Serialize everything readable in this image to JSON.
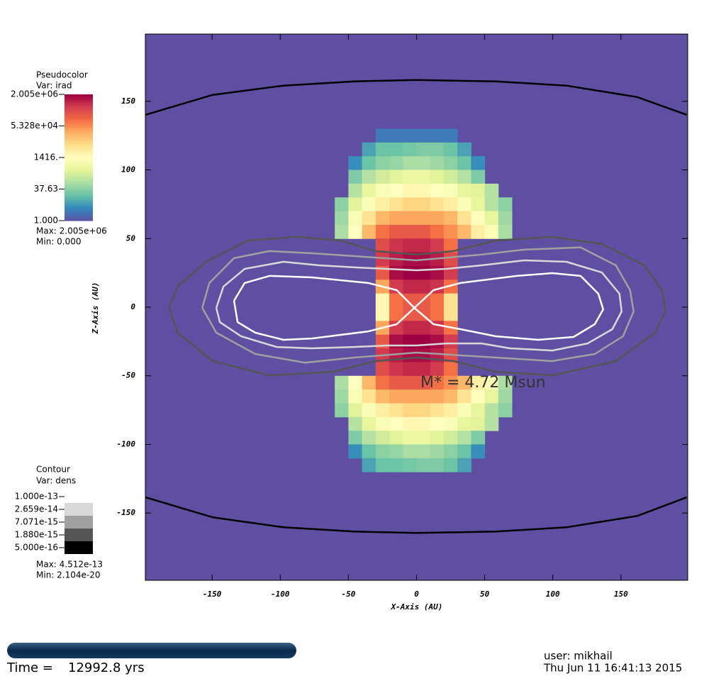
{
  "chart_data": {
    "type": "heatmap",
    "xlabel": "X-Axis (AU)",
    "ylabel": "Z-Axis (AU)",
    "xlim": [
      -199,
      199
    ],
    "ylim": [
      -199,
      199
    ],
    "xticks": [
      -150,
      -100,
      -50,
      0,
      50,
      100,
      150
    ],
    "yticks": [
      -150,
      -100,
      -50,
      0,
      50,
      100,
      150
    ],
    "annotation": "M* = 4.72 Msun",
    "x_edges": [
      -60,
      -50,
      -40,
      -30,
      -20,
      -10,
      0,
      10,
      20,
      30,
      40,
      50,
      60,
      70
    ],
    "y_edges": [
      130,
      120,
      110,
      100,
      90,
      80,
      70,
      60,
      50,
      40,
      30,
      20,
      10,
      0,
      -10,
      -20,
      -30,
      -40,
      -50,
      -60,
      -70,
      -80,
      -90,
      -100,
      -110,
      -120
    ],
    "z": [
      [
        null,
        null,
        null,
        3,
        3,
        3,
        3,
        3,
        3,
        null,
        null,
        null,
        null
      ],
      [
        null,
        null,
        8,
        20,
        20,
        25,
        30,
        30,
        20,
        8,
        null,
        null,
        null
      ],
      [
        null,
        5,
        20,
        40,
        50,
        80,
        80,
        60,
        40,
        20,
        5,
        null,
        null
      ],
      [
        null,
        30,
        100,
        200,
        300,
        500,
        500,
        300,
        200,
        100,
        30,
        null,
        null
      ],
      [
        null,
        100,
        400,
        1000,
        1416,
        2000,
        2000,
        1416,
        1000,
        400,
        300,
        100,
        null
      ],
      [
        40,
        300,
        1000,
        3000,
        5000,
        8000,
        8000,
        5000,
        3000,
        1000,
        400,
        100,
        40
      ],
      [
        60,
        1000,
        5000,
        20000,
        30000,
        30000,
        30000,
        30000,
        20000,
        5000,
        1500,
        400,
        60
      ],
      [
        80,
        1416,
        20000,
        100000,
        200000,
        200000,
        200000,
        100000,
        50000,
        20000,
        3000,
        1000,
        80
      ],
      [
        null,
        null,
        null,
        300000,
        600000,
        800000,
        800000,
        500000,
        100000,
        null,
        null,
        null,
        null
      ],
      [
        null,
        null,
        null,
        500000,
        1000000,
        1500000,
        1500000,
        1000000,
        300000,
        null,
        null,
        null,
        null
      ],
      [
        null,
        null,
        null,
        200000,
        1500000,
        2000000,
        2000000,
        1500000,
        500000,
        null,
        null,
        null,
        null
      ],
      [
        null,
        null,
        null,
        30000,
        500000,
        800000,
        800000,
        600000,
        100000,
        null,
        null,
        null,
        null
      ],
      [
        null,
        null,
        null,
        2000,
        100000,
        200000,
        200000,
        100000,
        5000,
        null,
        null,
        null,
        null
      ],
      [
        null,
        null,
        null,
        2000,
        100000,
        200000,
        200000,
        100000,
        5000,
        null,
        null,
        null,
        null
      ],
      [
        null,
        null,
        null,
        30000,
        500000,
        800000,
        800000,
        600000,
        100000,
        null,
        null,
        null,
        null
      ],
      [
        null,
        null,
        null,
        200000,
        1500000,
        2000000,
        2000000,
        1500000,
        500000,
        null,
        null,
        null,
        null
      ],
      [
        null,
        null,
        null,
        500000,
        1000000,
        1500000,
        1500000,
        1000000,
        300000,
        null,
        null,
        null,
        null
      ],
      [
        null,
        null,
        null,
        300000,
        600000,
        800000,
        800000,
        500000,
        100000,
        null,
        null,
        null,
        null
      ],
      [
        80,
        1416,
        20000,
        100000,
        200000,
        200000,
        200000,
        100000,
        50000,
        20000,
        3000,
        1000,
        80
      ],
      [
        60,
        1000,
        5000,
        20000,
        30000,
        30000,
        30000,
        30000,
        20000,
        5000,
        1500,
        400,
        60
      ],
      [
        40,
        300,
        1000,
        3000,
        5000,
        8000,
        8000,
        5000,
        3000,
        1000,
        400,
        100,
        40
      ],
      [
        null,
        100,
        400,
        1000,
        1416,
        2000,
        2000,
        1416,
        1000,
        400,
        300,
        100,
        null
      ],
      [
        null,
        30,
        100,
        200,
        300,
        500,
        500,
        300,
        200,
        100,
        30,
        null,
        null
      ],
      [
        null,
        5,
        20,
        40,
        50,
        80,
        80,
        60,
        40,
        20,
        5,
        null,
        null
      ],
      [
        null,
        null,
        8,
        20,
        20,
        25,
        30,
        30,
        20,
        8,
        null,
        null,
        null
      ]
    ],
    "colorbar": {
      "title": "Pseudocolor",
      "var": "Var: irad",
      "scale": "log",
      "lim": [
        1,
        2005000
      ],
      "ticks": [
        {
          "value": 2005000,
          "label": "2.005e+06"
        },
        {
          "value": 53280,
          "label": "5.328e+04"
        },
        {
          "value": 1416,
          "label": "1416."
        },
        {
          "value": 37.63,
          "label": "37.63"
        },
        {
          "value": 1,
          "label": "1.000"
        }
      ],
      "colormap": [
        "#5e4fa2",
        "#3288bd",
        "#66c2a5",
        "#abdda4",
        "#e6f598",
        "#ffffbf",
        "#fee08b",
        "#fdae61",
        "#f46d43",
        "#d53e4f",
        "#9e0142"
      ],
      "max": "Max:  2.005e+06",
      "min": "Min:  0.000"
    },
    "contour": {
      "title": "Contour",
      "var": "Var: dens",
      "levels": [
        {
          "value": 1e-13,
          "label": "1.000e-13",
          "color": "#ffffff"
        },
        {
          "value": 2.659e-14,
          "label": "2.659e-14",
          "color": "#d8d8d8"
        },
        {
          "value": 7.071e-15,
          "label": "7.071e-15",
          "color": "#a0a0a0"
        },
        {
          "value": 1.88e-15,
          "label": "1.880e-15",
          "color": "#555555"
        },
        {
          "value": 5e-16,
          "label": "5.000e-16",
          "color": "#000000"
        }
      ],
      "max": "Max:  4.512e-13",
      "min": "Min:  2.104e-20",
      "lines": [
        {
          "level": 1e-13,
          "x": [
            -133.9,
            -126.1,
            -107.9,
            -76.8,
            -35.3,
            -14.5,
            -1.6,
            12.5,
            32.2,
            73.7,
            99.6,
            120.4,
            133.4,
            137,
            130.8,
            115.2,
            89.3,
            58.1,
            32.2,
            12.5,
            -1.6,
            -14.5,
            -35.3,
            -76.8,
            -97.6,
            -118.3,
            -131.3,
            -133.9
          ],
          "y": [
            4.7,
            17.6,
            22.8,
            21.7,
            17.6,
            12.4,
            -0.5,
            12.4,
            17.6,
            22.8,
            24.8,
            22.8,
            9.8,
            -1.6,
            -12.4,
            -21.7,
            -23.8,
            -21.2,
            -16,
            -12.4,
            -0.5,
            -12.4,
            -17.6,
            -22.8,
            -23.8,
            -18.6,
            -10.9,
            4.7
          ]
        },
        {
          "level": 2.659e-14,
          "x": [
            -146.9,
            -141.7,
            -126.1,
            -97.6,
            -71.6,
            -45.7,
            -22.3,
            0,
            21.8,
            47.7,
            78.9,
            110,
            136,
            148.9,
            150.5,
            143.7,
            125.6,
            99.6,
            68.5,
            47.7,
            21.8,
            0,
            -22.3,
            -45.7,
            -76.8,
            -102.7,
            -128.7,
            -144.3,
            -146.9
          ],
          "y": [
            -0.5,
            15,
            27.9,
            33.1,
            30.5,
            29,
            27.9,
            26.9,
            27.9,
            30.5,
            34.1,
            33.1,
            25.3,
            9.8,
            -3.1,
            -16,
            -26.4,
            -31.6,
            -30,
            -26.4,
            -26.4,
            -27.9,
            -27.9,
            -29,
            -30,
            -29,
            -21.2,
            -10.9,
            -0.5
          ]
        },
        {
          "level": 7.071e-15,
          "x": [
            -157.2,
            -152,
            -133.9,
            -107.9,
            -76.8,
            -45.7,
            0,
            47.7,
            78.9,
            120.4,
            146.3,
            156.7,
            159.3,
            151.5,
            130.8,
            99.6,
            58.1,
            0,
            -45.7,
            -82,
            -118.3,
            -146.9,
            -157.2
          ],
          "y": [
            -0.5,
            17.6,
            35.7,
            40.9,
            39.3,
            37.2,
            34.1,
            38.3,
            41.9,
            43.5,
            30.5,
            12.4,
            -3.1,
            -21.2,
            -34.1,
            -39.3,
            -36.7,
            -33.1,
            -36.7,
            -40.4,
            -34.1,
            -18.6,
            -0.5
          ]
        },
        {
          "level": 1.88e-15,
          "x": [
            -181.6,
            -175.4,
            -154.6,
            -123.5,
            -87.2,
            -56,
            -30.1,
            0,
            27,
            58.1,
            99.6,
            136,
            167.1,
            180.1,
            182.7,
            174.9,
            146.3,
            99.6,
            58.1,
            27,
            0,
            -30.1,
            -61.2,
            -107.9,
            -149.5,
            -175.4,
            -181.6
          ],
          "y": [
            -0.5,
            15,
            33.1,
            48.6,
            51.2,
            48.6,
            40.9,
            38.3,
            40.9,
            48.6,
            51.2,
            46,
            30.5,
            12.4,
            -3.1,
            -18.6,
            -39.3,
            -49.7,
            -47.1,
            -39.3,
            -36.7,
            -39.3,
            -47.1,
            -49.7,
            -39.3,
            -18.6,
            -0.5
          ]
        },
        {
          "level": 5e-16,
          "x": [
            -198.8,
            -149.5,
            -97.6,
            -45.7,
            0,
            58.1,
            110,
            161.9,
            198.2
          ],
          "y": [
            140.2,
            154.7,
            161.4,
            164.5,
            165.5,
            164.5,
            161.4,
            153.1,
            140.2
          ]
        },
        {
          "level": 5e-16,
          "x": [
            -198.8,
            -149.5,
            -97.6,
            -45.7,
            0,
            58.1,
            110,
            161.9,
            198.2
          ],
          "y": [
            -138.6,
            -153.1,
            -160.4,
            -163.5,
            -164.5,
            -163.5,
            -160.4,
            -152.1,
            -138.6
          ]
        }
      ]
    }
  },
  "footer": {
    "time_label": "Time =",
    "time_value": "12992.8 yrs",
    "user": "user: mikhail",
    "date": "Thu Jun 11 16:41:13 2015"
  }
}
